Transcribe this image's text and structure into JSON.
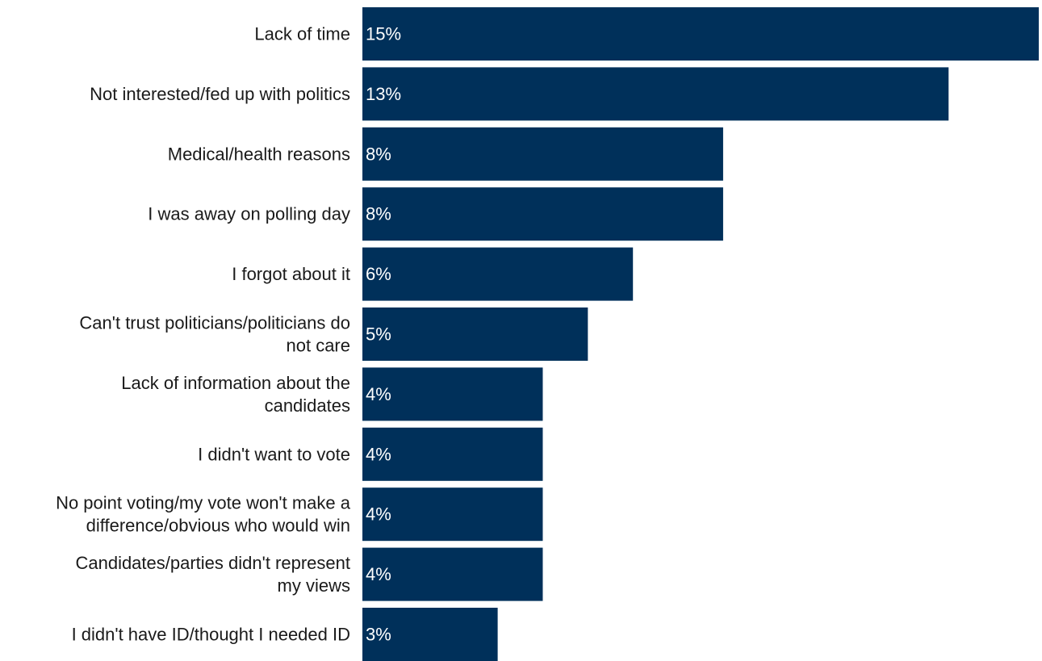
{
  "chart_data": {
    "type": "bar",
    "orientation": "horizontal",
    "title": "",
    "xlabel": "",
    "ylabel": "",
    "xlim": [
      0,
      15
    ],
    "grid": false,
    "legend": "none",
    "bar_color": "#00305a",
    "categories": [
      "Lack of time",
      "Not interested/fed up with politics",
      "Medical/health reasons",
      "I was away on polling day",
      "I forgot about it",
      "Can't trust politicians/politicians do not care",
      "Lack of information about the candidates",
      "I didn't want to vote",
      "No point voting/my vote won't make a difference/obvious who would win",
      "Candidates/parties didn't represent my views",
      "I didn't have ID/thought I needed ID"
    ],
    "category_label_lines": [
      [
        "Lack of time"
      ],
      [
        "Not interested/fed up with politics"
      ],
      [
        "Medical/health reasons"
      ],
      [
        "I was away on polling day"
      ],
      [
        "I forgot about it"
      ],
      [
        "Can't trust politicians/politicians do",
        "not care"
      ],
      [
        "Lack of information about the",
        "candidates"
      ],
      [
        "I didn't want to vote"
      ],
      [
        "No point voting/my vote won't make a",
        "difference/obvious who would win"
      ],
      [
        "Candidates/parties didn't represent",
        "my views"
      ],
      [
        "I didn't have ID/thought I needed ID"
      ]
    ],
    "values": [
      15,
      13,
      8,
      8,
      6,
      5,
      4,
      4,
      4,
      4,
      3
    ],
    "value_labels": [
      "15%",
      "13%",
      "8%",
      "8%",
      "6%",
      "5%",
      "4%",
      "4%",
      "4%",
      "4%",
      "3%"
    ]
  }
}
